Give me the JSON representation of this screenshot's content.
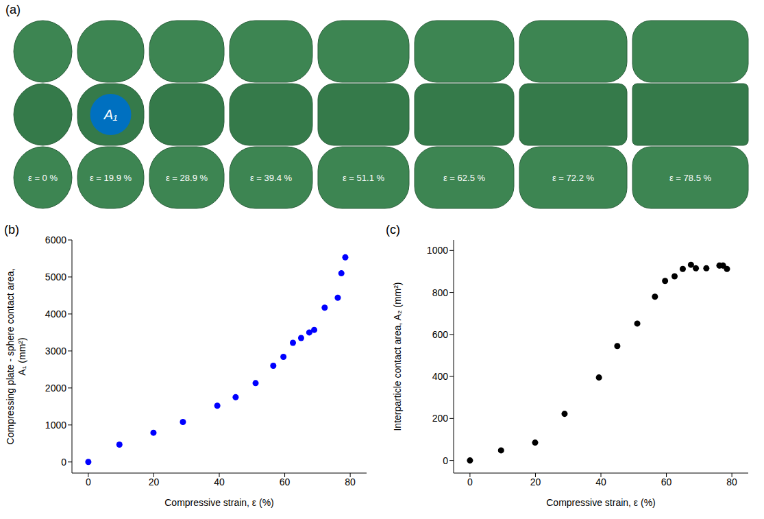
{
  "photo_panel": {
    "panel": "(a)",
    "labels": [
      "ε = 0 %",
      "ε = 19.9 %",
      "ε = 28.9 %",
      "ε = 39.4 %",
      "ε = 51.1 %",
      "ε = 62.5 %",
      "ε = 72.2 %",
      "ε = 78.5 %"
    ],
    "highlight_label": "A₁"
  },
  "chart_data": [
    {
      "type": "scatter",
      "panel": "(b)",
      "x_label": "Compressive strain, ε (%)",
      "y_label": "Compressing plate - sphere contact area, A₁ (mm²)",
      "x": [
        0,
        9.5,
        19.9,
        28.9,
        39.4,
        45,
        51.1,
        56.5,
        59.6,
        62.5,
        65,
        67.5,
        69,
        72.2,
        76.2,
        77.3,
        78.5
      ],
      "values": [
        0,
        470,
        790,
        1080,
        1520,
        1750,
        2130,
        2600,
        2840,
        3220,
        3350,
        3500,
        3570,
        4170,
        4440,
        5100,
        5530
      ],
      "color": "#0000ff",
      "marker": "circle",
      "xlim": [
        -5,
        85
      ],
      "ylim": [
        -300,
        6000
      ],
      "xticks": [
        0,
        20,
        40,
        60,
        80
      ],
      "yticks": [
        0,
        1000,
        2000,
        3000,
        4000,
        5000,
        6000
      ]
    },
    {
      "type": "scatter",
      "panel": "(c)",
      "x_label": "Compressive strain, ε (%)",
      "y_label": "Interparticle contact area, A₂ (mm²)",
      "x": [
        0,
        9.5,
        19.9,
        28.9,
        39.4,
        45,
        51.1,
        56.5,
        59.6,
        62.5,
        65,
        67.5,
        69,
        72.2,
        76.2,
        77.3,
        78.5
      ],
      "values": [
        0,
        48,
        85,
        222,
        395,
        545,
        652,
        780,
        855,
        877,
        912,
        932,
        915,
        915,
        928,
        928,
        912
      ],
      "color": "#000000",
      "marker": "circle",
      "xlim": [
        -5,
        85
      ],
      "ylim": [
        -60,
        1050
      ],
      "xticks": [
        0,
        20,
        40,
        60,
        80
      ],
      "yticks": [
        0,
        200,
        400,
        600,
        800,
        1000
      ]
    }
  ]
}
